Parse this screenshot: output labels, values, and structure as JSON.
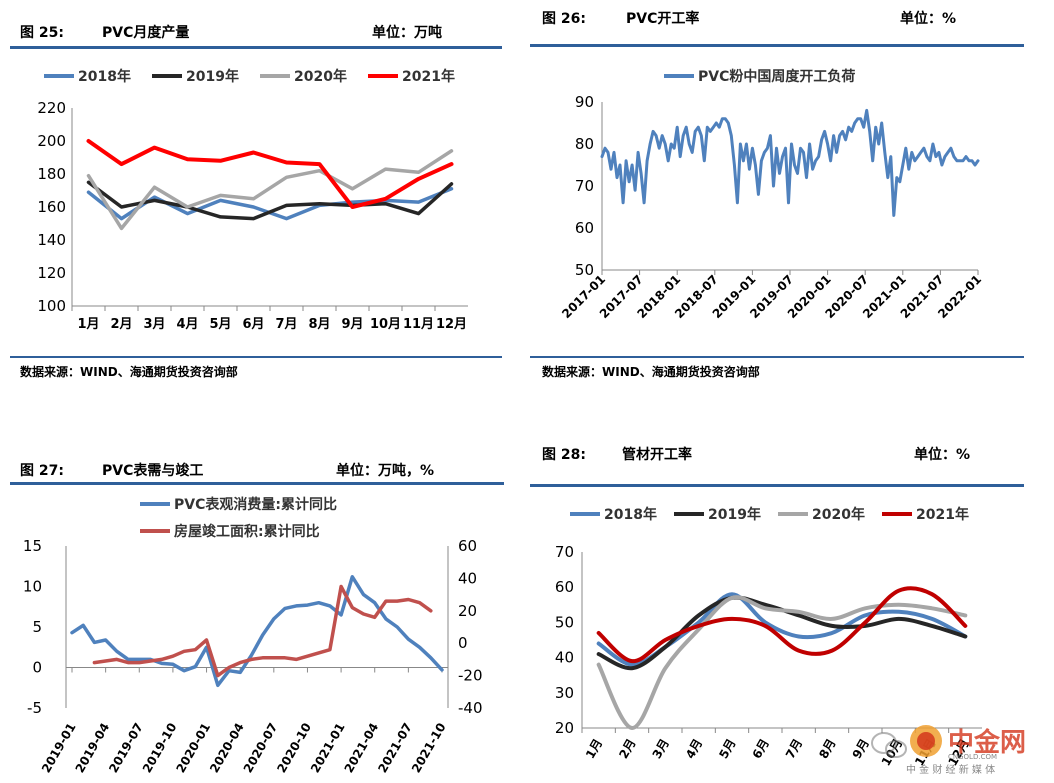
{
  "panels": {
    "p25": {
      "fig": "图 25:",
      "name": "PVC月度产量",
      "unit": "单位：万吨",
      "source": "数据来源：WIND、海通期货投资咨询部"
    },
    "p26": {
      "fig": "图 26:",
      "name": "PVC开工率",
      "unit": "单位：%",
      "source": "数据来源：WIND、海通期货投资咨询部"
    },
    "p27": {
      "fig": "图 27:",
      "name": "PVC表需与竣工",
      "unit": "单位：万吨，%"
    },
    "p28": {
      "fig": "图 28:",
      "name": "管材开工率",
      "unit": "单位：%"
    }
  },
  "watermark": {
    "brand": "中金网",
    "sub": "CNGOLD.COM",
    "tagline": "中 金 财 经 新 媒 体",
    "icon": "wechat-icon"
  },
  "chart_data": [
    {
      "id": "c25",
      "type": "line",
      "categories": [
        "1月",
        "2月",
        "3月",
        "4月",
        "5月",
        "6月",
        "7月",
        "8月",
        "9月",
        "10月",
        "11月",
        "12月"
      ],
      "ylim": [
        100,
        220
      ],
      "yticks": [
        100,
        120,
        140,
        160,
        180,
        200,
        220
      ],
      "series": [
        {
          "name": "2018年",
          "color": "#4f81bd",
          "values": [
            169,
            153,
            166,
            156,
            164,
            160,
            153,
            161,
            163,
            164,
            163,
            171
          ]
        },
        {
          "name": "2019年",
          "color": "#262626",
          "values": [
            175,
            160,
            164,
            160,
            154,
            153,
            161,
            162,
            161,
            162,
            156,
            174
          ]
        },
        {
          "name": "2020年",
          "color": "#a6a6a6",
          "values": [
            179,
            147,
            172,
            160,
            167,
            165,
            178,
            182,
            171,
            183,
            181,
            194
          ]
        },
        {
          "name": "2021年",
          "color": "#ff0000",
          "values": [
            200,
            186,
            196,
            189,
            188,
            193,
            187,
            186,
            160,
            165,
            177,
            186
          ]
        }
      ],
      "legend": "top"
    },
    {
      "id": "c26",
      "type": "line",
      "xticks": [
        "2017-01",
        "2017-07",
        "2018-01",
        "2018-07",
        "2019-01",
        "2019-07",
        "2020-01",
        "2020-07",
        "2021-01",
        "2021-07",
        "2022-01"
      ],
      "ylim": [
        50,
        90
      ],
      "yticks": [
        50,
        60,
        70,
        80,
        90
      ],
      "series": [
        {
          "name": "PVC粉中国周度开工负荷",
          "color": "#4f81bd",
          "x": [
            2017.0,
            2017.04,
            2017.08,
            2017.12,
            2017.16,
            2017.2,
            2017.24,
            2017.28,
            2017.32,
            2017.36,
            2017.4,
            2017.44,
            2017.48,
            2017.52,
            2017.56,
            2017.6,
            2017.64,
            2017.68,
            2017.72,
            2017.76,
            2017.8,
            2017.84,
            2017.88,
            2017.92,
            2017.96,
            2018.0,
            2018.04,
            2018.08,
            2018.12,
            2018.16,
            2018.2,
            2018.24,
            2018.28,
            2018.32,
            2018.36,
            2018.4,
            2018.44,
            2018.48,
            2018.52,
            2018.56,
            2018.6,
            2018.64,
            2018.68,
            2018.72,
            2018.76,
            2018.8,
            2018.84,
            2018.88,
            2018.92,
            2018.96,
            2019.0,
            2019.04,
            2019.08,
            2019.12,
            2019.16,
            2019.2,
            2019.24,
            2019.28,
            2019.32,
            2019.36,
            2019.4,
            2019.44,
            2019.48,
            2019.52,
            2019.56,
            2019.6,
            2019.64,
            2019.68,
            2019.72,
            2019.76,
            2019.8,
            2019.84,
            2019.88,
            2019.92,
            2019.96,
            2020.0,
            2020.04,
            2020.08,
            2020.12,
            2020.16,
            2020.2,
            2020.24,
            2020.28,
            2020.32,
            2020.36,
            2020.4,
            2020.44,
            2020.48,
            2020.52,
            2020.56,
            2020.6,
            2020.64,
            2020.68,
            2020.72,
            2020.76,
            2020.8,
            2020.84,
            2020.88,
            2020.92,
            2020.96,
            2021.0,
            2021.04,
            2021.08,
            2021.12,
            2021.16,
            2021.2,
            2021.24,
            2021.28,
            2021.32,
            2021.36,
            2021.4,
            2021.44,
            2021.48,
            2021.52,
            2021.56,
            2021.6,
            2021.64,
            2021.68,
            2021.72,
            2021.76,
            2021.8,
            2021.84,
            2021.88,
            2021.92,
            2021.96,
            2022.0
          ],
          "values": [
            77,
            79,
            78,
            74,
            78,
            72,
            75,
            66,
            76,
            71,
            75,
            69,
            78,
            73,
            66,
            76,
            80,
            83,
            82,
            79,
            82,
            80,
            76,
            80,
            79,
            84,
            77,
            82,
            84,
            80,
            78,
            83,
            84,
            82,
            76,
            84,
            83,
            84,
            85,
            84,
            86,
            86,
            85,
            82,
            75,
            66,
            80,
            76,
            80,
            74,
            79,
            75,
            68,
            76,
            78,
            79,
            82,
            70,
            79,
            73,
            77,
            79,
            66,
            80,
            75,
            73,
            79,
            78,
            72,
            80,
            74,
            76,
            77,
            81,
            83,
            80,
            76,
            82,
            78,
            82,
            83,
            81,
            84,
            83,
            85,
            86,
            86,
            84,
            88,
            83,
            76,
            84,
            80,
            85,
            78,
            72,
            77,
            63,
            72,
            71,
            75,
            79,
            74,
            78,
            76,
            77,
            78,
            79,
            77,
            76,
            80,
            77,
            78,
            75,
            77,
            78,
            79,
            77,
            76,
            76,
            76,
            77,
            76,
            76,
            75,
            76
          ]
        }
      ],
      "legend": "top"
    },
    {
      "id": "c27",
      "type": "line",
      "dual_axis": true,
      "xticks": [
        "2019-01",
        "2019-04",
        "2019-07",
        "2019-10",
        "2020-01",
        "2020-04",
        "2020-07",
        "2020-10",
        "2021-01",
        "2021-04",
        "2021-07",
        "2021-10"
      ],
      "ylim_left": [
        -5,
        15
      ],
      "yticks_left": [
        -5,
        0,
        5,
        10,
        15
      ],
      "ylim_right": [
        -40,
        60
      ],
      "yticks_right": [
        -40,
        -20,
        0,
        20,
        40,
        60
      ],
      "series": [
        {
          "name": "PVC表观消费量:累计同比",
          "axis": "left",
          "color": "#4f81bd",
          "values": [
            4.3,
            5.2,
            3.1,
            3.4,
            2.0,
            1.0,
            1.0,
            1.0,
            0.5,
            0.4,
            -0.4,
            0.1,
            2.5,
            -2.2,
            -0.4,
            -0.6,
            1.5,
            4.0,
            6.0,
            7.3,
            7.6,
            7.7,
            8.0,
            7.6,
            6.5,
            11.2,
            9.0,
            8.0,
            6.0,
            5.0,
            3.5,
            2.5,
            1.2,
            -0.3
          ]
        },
        {
          "name": "房屋竣工面积:累计同比",
          "axis": "right",
          "color": "#c0504d",
          "values": [
            null,
            null,
            -12,
            -11,
            -10,
            -12,
            -12,
            -11,
            -10,
            -8,
            -5,
            -4,
            2,
            -20,
            -15,
            -12,
            -10,
            -9,
            -9,
            -9,
            -10,
            -8,
            -6,
            -4,
            35,
            22,
            18,
            16,
            26,
            26,
            27,
            25,
            20
          ]
        }
      ],
      "legend": "top"
    },
    {
      "id": "c28",
      "type": "line",
      "categories": [
        "1月",
        "2月",
        "3月",
        "4月",
        "5月",
        "6月",
        "7月",
        "8月",
        "9月",
        "10月",
        "11月",
        "12月"
      ],
      "ylim": [
        20,
        70
      ],
      "yticks": [
        20,
        30,
        40,
        50,
        60,
        70
      ],
      "series": [
        {
          "name": "2018年",
          "color": "#4f81bd",
          "values": [
            44,
            38,
            43,
            50,
            58,
            50,
            46,
            47,
            52,
            53,
            51,
            46
          ]
        },
        {
          "name": "2019年",
          "color": "#262626",
          "values": [
            41,
            37,
            43,
            52,
            57,
            55,
            52,
            49,
            49,
            51,
            49,
            46
          ]
        },
        {
          "name": "2020年",
          "color": "#a6a6a6",
          "values": [
            38,
            20,
            37,
            48,
            57,
            54,
            53,
            51,
            54,
            55,
            54,
            52
          ]
        },
        {
          "name": "2021年",
          "color": "#c00000",
          "values": [
            47,
            39,
            45,
            49,
            51,
            49,
            42,
            42,
            50,
            59,
            58,
            49
          ]
        }
      ],
      "legend": "top"
    }
  ]
}
